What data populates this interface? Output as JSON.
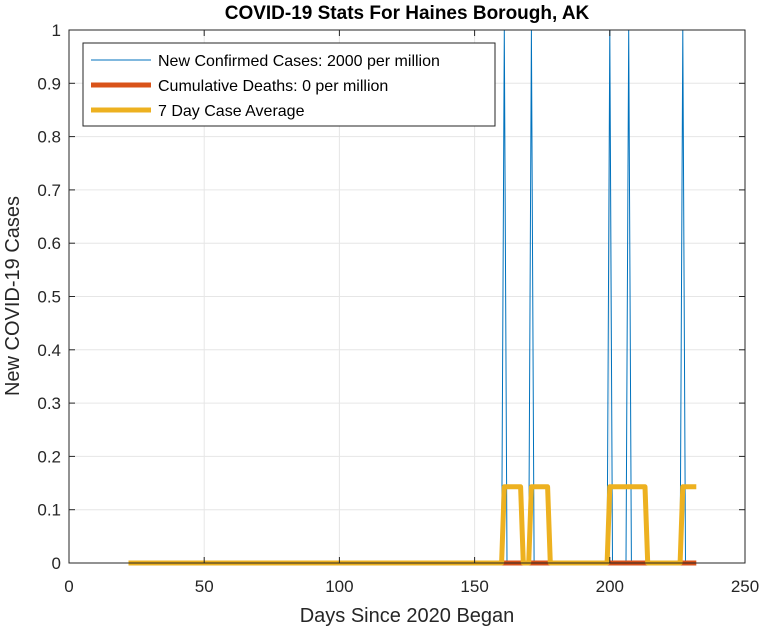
{
  "chart_data": {
    "type": "line",
    "title": "COVID-19 Stats For Haines Borough, AK",
    "xlabel": "Days Since 2020 Began",
    "ylabel": "New COVID-19 Cases",
    "xlim": [
      0,
      250
    ],
    "ylim": [
      0,
      1
    ],
    "xticks": [
      0,
      50,
      100,
      150,
      200,
      250
    ],
    "xtick_labels": [
      "0",
      "50",
      "100",
      "150",
      "200",
      "250"
    ],
    "yticks": [
      0,
      0.1,
      0.2,
      0.3,
      0.4,
      0.5,
      0.6,
      0.7,
      0.8,
      0.9,
      1
    ],
    "ytick_labels": [
      "0",
      "0.1",
      "0.2",
      "0.3",
      "0.4",
      "0.5",
      "0.6",
      "0.7",
      "0.8",
      "0.9",
      "1"
    ],
    "grid": true,
    "legend_position": "top-left",
    "series": [
      {
        "name": "New Confirmed Cases: 2000 per million",
        "color": "#0072BD",
        "style": "thin",
        "x": [
          22,
          160,
          161,
          162,
          170,
          171,
          172,
          199,
          200,
          201,
          206,
          207,
          208,
          226,
          227,
          228,
          232
        ],
        "y": [
          0,
          0,
          1,
          0,
          0,
          1,
          0,
          0,
          1,
          0,
          0,
          1,
          0,
          0,
          1,
          0,
          0
        ]
      },
      {
        "name": "Cumulative Deaths: 0 per million",
        "color": "#D95319",
        "style": "thick",
        "x": [
          22,
          232
        ],
        "y": [
          0,
          0
        ]
      },
      {
        "name": "7 Day Case Average",
        "color": "#EDB120",
        "style": "thick",
        "x": [
          22,
          160,
          161,
          167,
          168,
          170,
          171,
          177,
          178,
          199,
          200,
          213,
          214,
          226,
          227,
          232
        ],
        "y": [
          0,
          0,
          0.1429,
          0.1429,
          0,
          0,
          0.1429,
          0.1429,
          0,
          0,
          0.1429,
          0.1429,
          0,
          0,
          0.1429,
          0.1429
        ]
      }
    ]
  }
}
